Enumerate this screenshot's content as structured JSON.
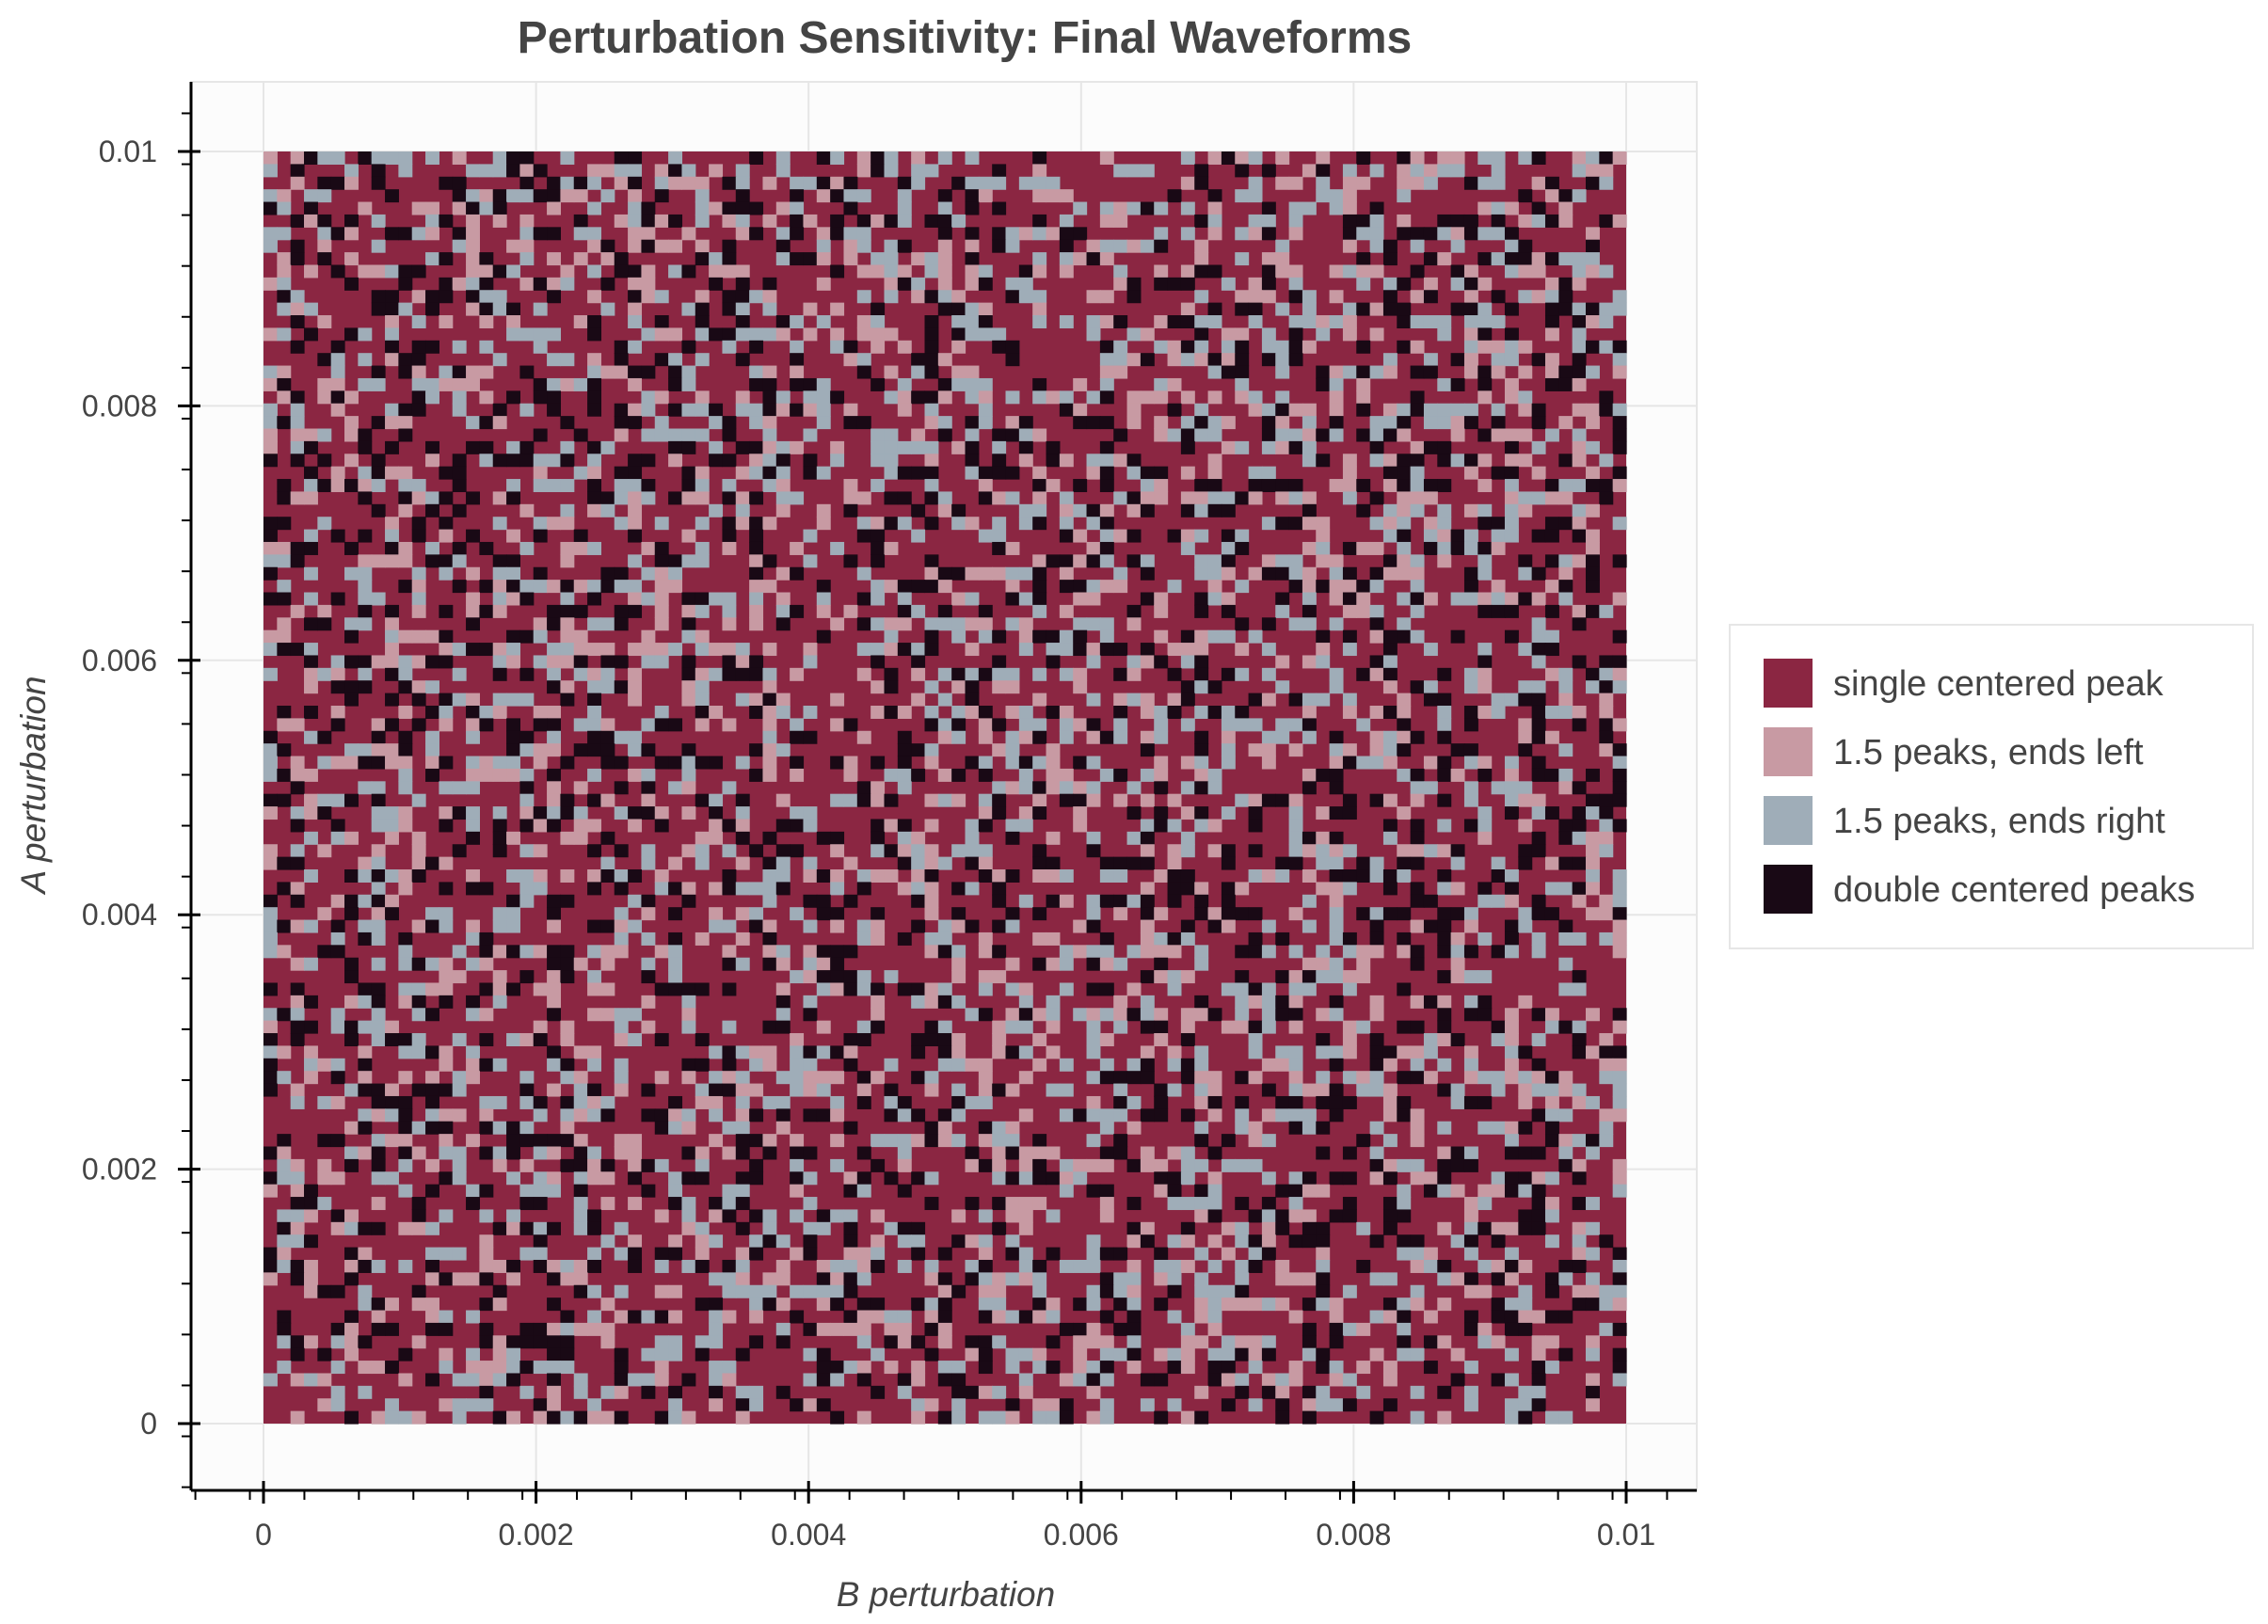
{
  "chart_data": {
    "type": "heatmap",
    "title": "Perturbation Sensitivity: Final Waveforms",
    "xlabel": "B perturbation",
    "ylabel": "A perturbation",
    "xlim": [
      -0.0005,
      0.0105
    ],
    "ylim": [
      -0.0005,
      0.0105
    ],
    "x_ticks": [
      0,
      0.002,
      0.004,
      0.006,
      0.008,
      0.01
    ],
    "x_tick_labels": [
      "0",
      "0.002",
      "0.004",
      "0.006",
      "0.008",
      "0.01"
    ],
    "y_ticks": [
      0,
      0.002,
      0.004,
      0.006,
      0.008,
      0.01
    ],
    "y_tick_labels": [
      "0",
      "0.002",
      "0.004",
      "0.006",
      "0.008",
      "0.01"
    ],
    "grid": true,
    "grid_cells": {
      "x_range": [
        0,
        0.01
      ],
      "y_range": [
        0,
        0.01
      ],
      "n": 101
    },
    "categories": [
      {
        "label": "single centered peak",
        "color": "#8b2642",
        "share": 0.52
      },
      {
        "label": "1.5 peaks, ends left",
        "color": "#c89aa3",
        "share": 0.15
      },
      {
        "label": "1.5 peaks, ends right",
        "color": "#9fadb8",
        "share": 0.16
      },
      {
        "label": "double centered peaks",
        "color": "#190915",
        "share": 0.17
      }
    ],
    "legend_position": "right",
    "pattern": "pseudo-random scatter of categories across all cells (approximate)"
  }
}
